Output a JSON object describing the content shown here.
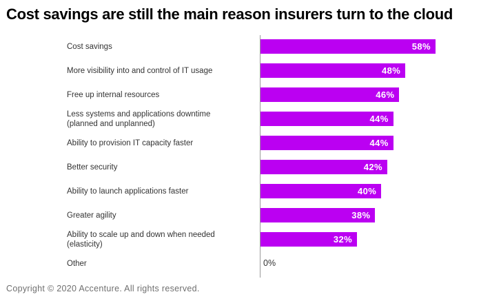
{
  "title": "Cost savings are still the main reason insurers turn to the cloud",
  "footer": {
    "copyright": "Copyright © 2020 Accenture. All rights reserved."
  },
  "colors": {
    "bar": "#BB00F2",
    "axis": "#9a9a9a",
    "title": "#000000",
    "label": "#333333",
    "value_inside_bar": "#ffffff",
    "value_zero": "#333333",
    "copyright": "#6f6f6f",
    "background": "#ffffff"
  },
  "chart_data": {
    "type": "bar",
    "orientation": "horizontal",
    "title": "Cost savings are still the main reason insurers turn to the cloud",
    "xlabel": "",
    "ylabel": "",
    "xlim": [
      0,
      80
    ],
    "grid": false,
    "legend": false,
    "value_label_position": "inside-end",
    "categories": [
      "Cost savings",
      "More visibility into and control of IT usage",
      "Free up internal resources",
      "Less systems and applications downtime\n(planned and unplanned)",
      "Ability to provision IT capacity faster",
      "Better security",
      "Ability to launch applications faster",
      "Greater agility",
      "Ability to scale up and down when needed\n(elasticity)",
      "Other"
    ],
    "values": [
      58,
      48,
      46,
      44,
      44,
      42,
      40,
      38,
      32,
      0
    ],
    "value_labels": [
      "58%",
      "48%",
      "46%",
      "44%",
      "44%",
      "42%",
      "40%",
      "38%",
      "32%",
      "0%"
    ]
  }
}
